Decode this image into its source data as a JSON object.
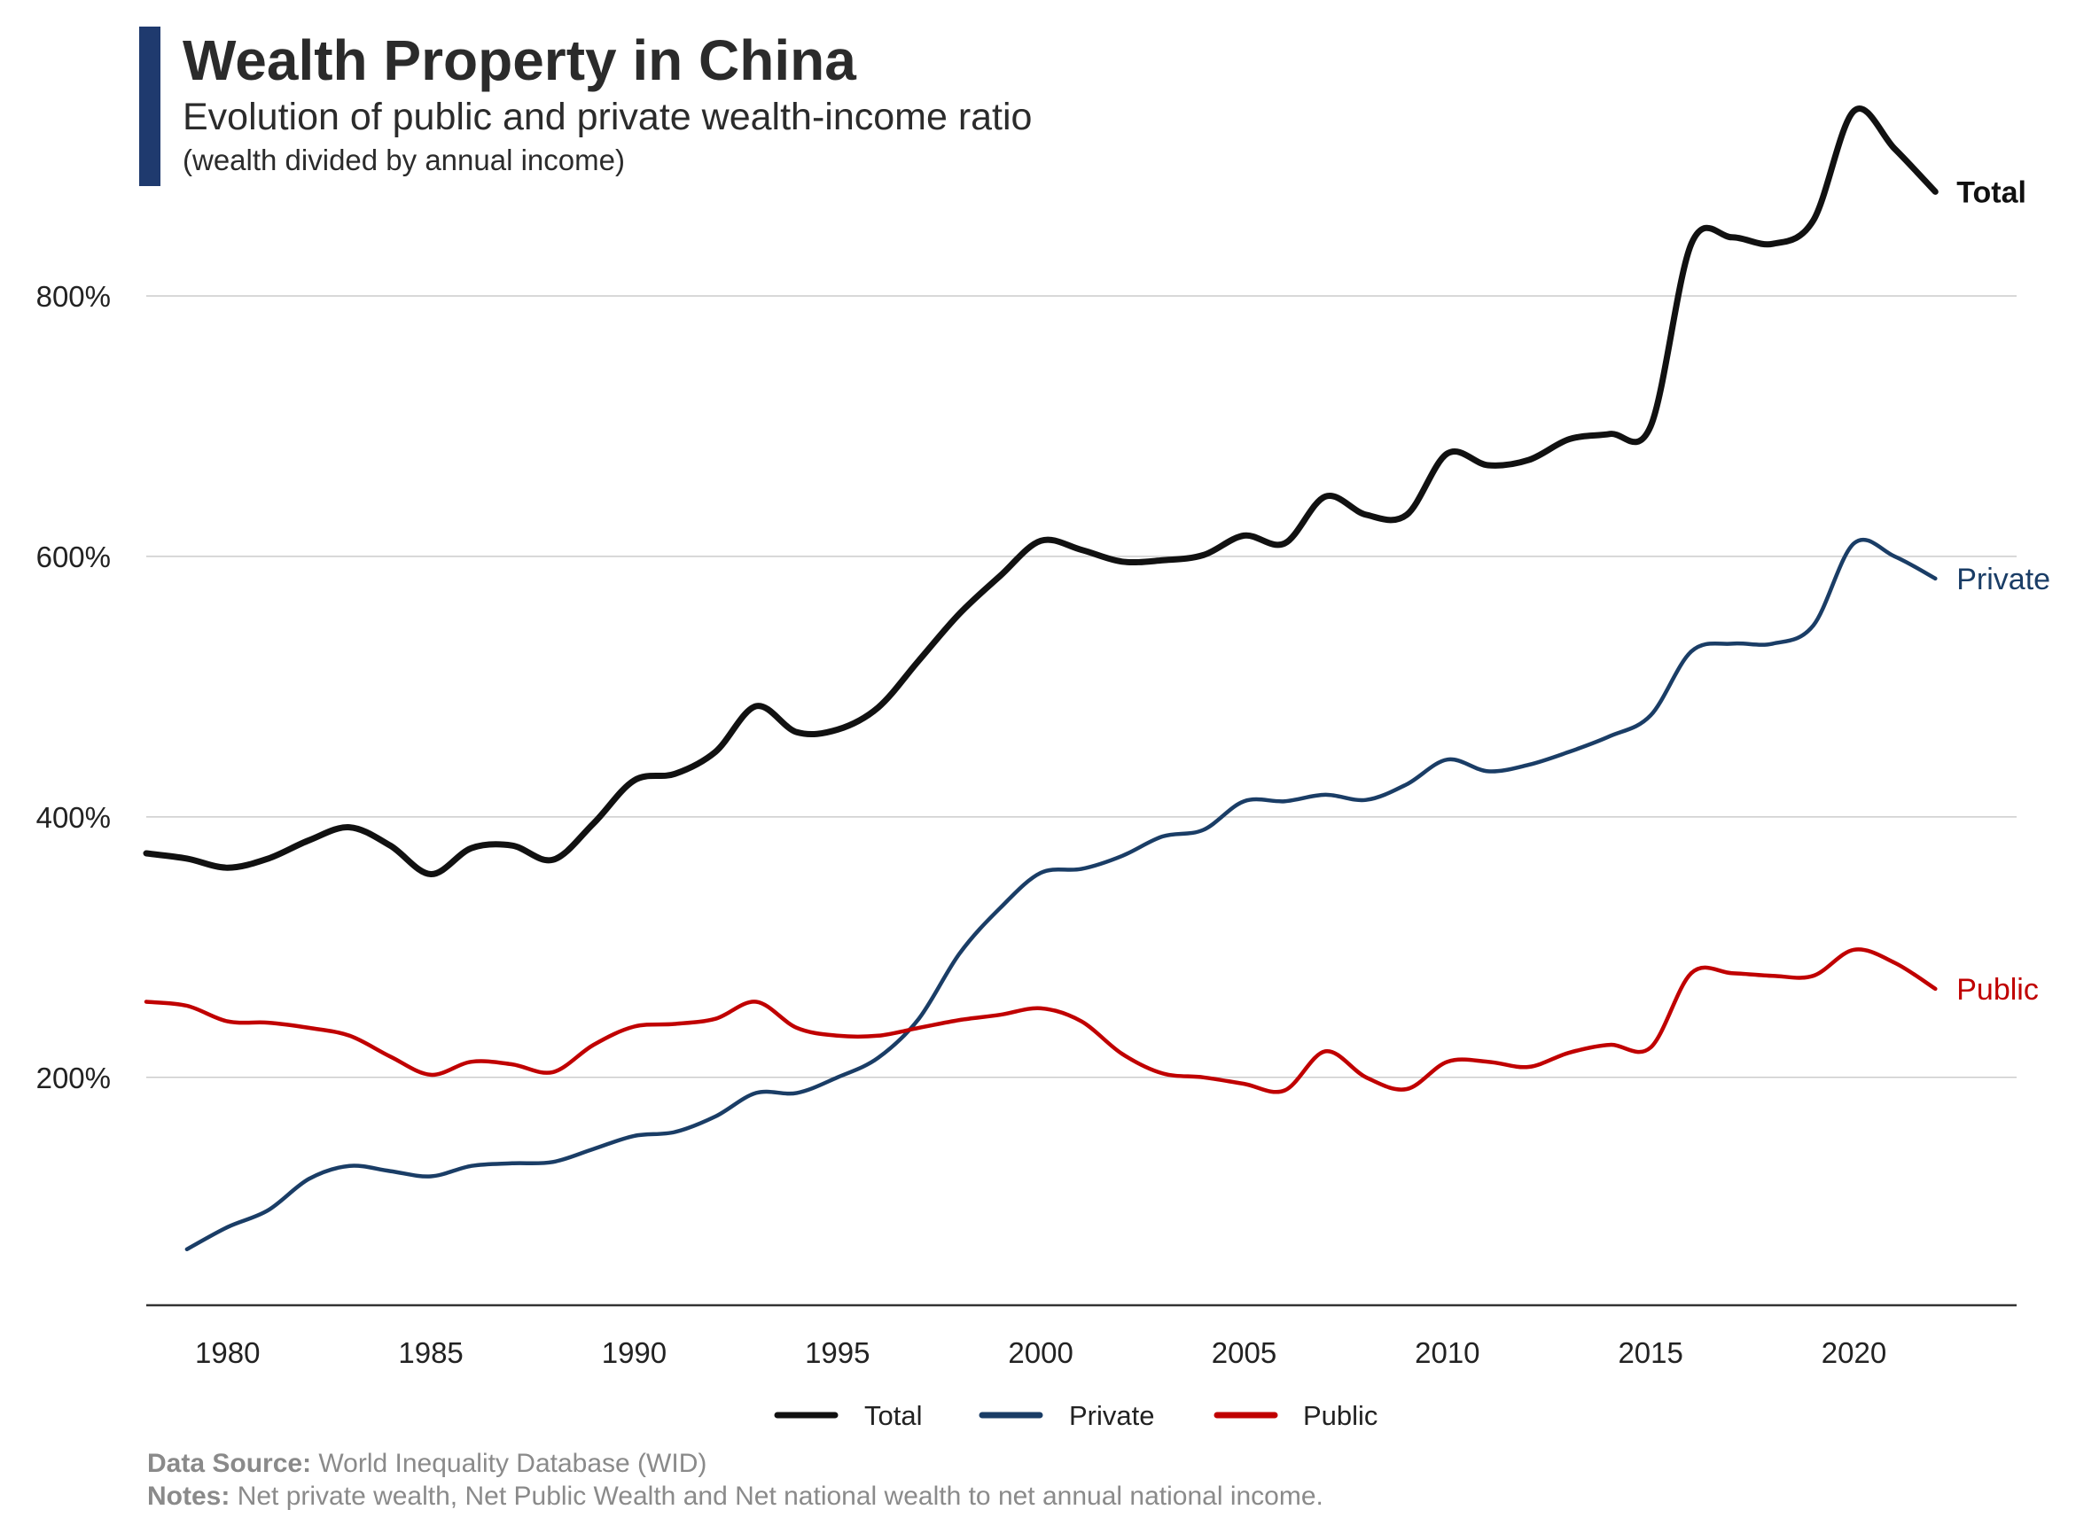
{
  "colors": {
    "accent_bar": "#1f3a6e",
    "total": "#111111",
    "private": "#c00000",
    "public": "#1a3d66",
    "grid": "#cccccc",
    "axis": "#333333",
    "note": "#8a8a8a"
  },
  "header": {
    "title": "Wealth Property in China",
    "subtitle": "Evolution of public and private wealth-income ratio",
    "subtitle2": "(wealth divided by annual income)"
  },
  "footer": {
    "source_label": "Data Source:",
    "source_text": "World Inequality Database (WID)",
    "notes_label": "Notes:",
    "notes_text": "Net private wealth, Net Public Wealth and Net national wealth to net annual national income."
  },
  "chart_data": {
    "type": "line",
    "title": "Wealth Property in China",
    "xlabel": "",
    "ylabel": "",
    "xlim": [
      1978,
      2024
    ],
    "ylim": [
      25,
      1000
    ],
    "x_ticks": [
      1980,
      1985,
      1990,
      1995,
      2000,
      2005,
      2010,
      2015,
      2020
    ],
    "x_tick_labels": [
      "1980",
      "1985",
      "1990",
      "1995",
      "2000",
      "2005",
      "2010",
      "2015",
      "2020"
    ],
    "y_ticks": [
      200,
      400,
      600,
      800
    ],
    "y_tick_labels": [
      "200%",
      "400%",
      "600%",
      "800%"
    ],
    "grid": "horizontal",
    "legend": {
      "position": "bottom",
      "entries": [
        "Total",
        "Private",
        "Public"
      ]
    },
    "series": [
      {
        "name": "Total",
        "label": "Total",
        "x": [
          1978,
          1979,
          1980,
          1981,
          1982,
          1983,
          1984,
          1985,
          1986,
          1987,
          1988,
          1989,
          1990,
          1991,
          1992,
          1993,
          1994,
          1995,
          1996,
          1997,
          1998,
          1999,
          2000,
          2001,
          2002,
          2003,
          2004,
          2005,
          2006,
          2007,
          2008,
          2009,
          2010,
          2011,
          2012,
          2013,
          2014,
          2015,
          2016,
          2017,
          2018,
          2019,
          2020,
          2021,
          2022
        ],
        "values": [
          372,
          368,
          361,
          368,
          382,
          392,
          378,
          356,
          376,
          378,
          367,
          395,
          428,
          433,
          450,
          485,
          465,
          467,
          484,
          520,
          556,
          585,
          612,
          605,
          596,
          597,
          601,
          616,
          610,
          646,
          632,
          632,
          679,
          670,
          674,
          690,
          694,
          700,
          840,
          845,
          840,
          858,
          942,
          913,
          880
        ]
      },
      {
        "name": "Private",
        "label": "Private",
        "x": [
          1979,
          1980,
          1981,
          1982,
          1983,
          1984,
          1985,
          1986,
          1987,
          1988,
          1989,
          1990,
          1991,
          1992,
          1993,
          1994,
          1995,
          1996,
          1997,
          1998,
          1999,
          2000,
          2001,
          2002,
          2003,
          2004,
          2005,
          2006,
          2007,
          2008,
          2009,
          2010,
          2011,
          2012,
          2013,
          2014,
          2015,
          2016,
          2017,
          2018,
          2019,
          2020,
          2021,
          2022
        ],
        "values": [
          68,
          85,
          98,
          122,
          132,
          128,
          124,
          132,
          134,
          135,
          145,
          155,
          158,
          170,
          188,
          188,
          200,
          215,
          245,
          295,
          330,
          357,
          360,
          370,
          385,
          390,
          412,
          412,
          417,
          413,
          425,
          444,
          435,
          440,
          450,
          462,
          478,
          527,
          533,
          533,
          547,
          610,
          600,
          583
        ]
      },
      {
        "name": "Public",
        "label": "Public",
        "x": [
          1978,
          1979,
          1980,
          1981,
          1982,
          1983,
          1984,
          1985,
          1986,
          1987,
          1988,
          1989,
          1990,
          1991,
          1992,
          1993,
          1994,
          1995,
          1996,
          1997,
          1998,
          1999,
          2000,
          2001,
          2002,
          2003,
          2004,
          2005,
          2006,
          2007,
          2008,
          2009,
          2010,
          2011,
          2012,
          2013,
          2014,
          2015,
          2016,
          2017,
          2018,
          2019,
          2020,
          2021,
          2022
        ],
        "values": [
          258,
          255,
          243,
          242,
          238,
          232,
          216,
          202,
          212,
          210,
          204,
          225,
          239,
          241,
          245,
          258,
          238,
          232,
          232,
          238,
          244,
          248,
          253,
          243,
          218,
          203,
          200,
          195,
          190,
          220,
          200,
          191,
          212,
          212,
          208,
          219,
          225,
          223,
          280,
          280,
          278,
          278,
          298,
          288,
          268
        ]
      }
    ]
  }
}
